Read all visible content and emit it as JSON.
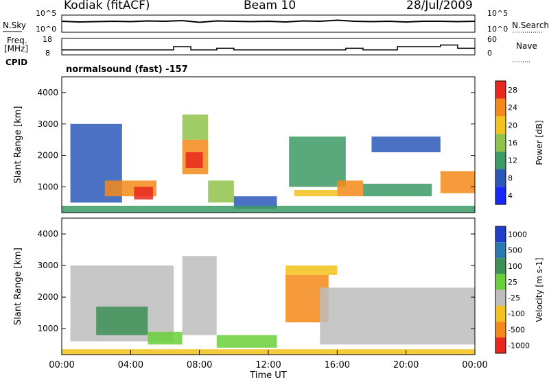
{
  "header": {
    "station": "Kodiak (fitACF)",
    "beam": "Beam 10",
    "date": "28/Jul/2009"
  },
  "side_labels": {
    "nsky": "N.Sky",
    "freq_top": "Freq.",
    "freq_unit": "[MHz]",
    "cpid": "CPID",
    "nsearch": "N.Search",
    "nave": "Nave",
    "mode": "normalsound (fast) -157"
  },
  "chart_data": [
    {
      "type": "line",
      "name": "noise",
      "left_ticks": [
        "10^5",
        "10^0"
      ],
      "right_ticks": [
        "10^5",
        "10^0"
      ],
      "series": [
        {
          "name": "N.Sky",
          "x": [
            0,
            1,
            2,
            3,
            4,
            5,
            6,
            7,
            8,
            9,
            10,
            11,
            12,
            13,
            14,
            15,
            16,
            17,
            18,
            19,
            20,
            21,
            22,
            23,
            24
          ],
          "values": [
            3.2,
            3.0,
            3.1,
            3.2,
            3.1,
            3.3,
            3.2,
            3.4,
            2.9,
            3.3,
            3.2,
            3.1,
            3.2,
            3.0,
            3.3,
            3.2,
            3.5,
            3.2,
            3.1,
            3.2,
            3.0,
            3.2,
            3.2,
            3.1,
            3.2
          ]
        }
      ]
    },
    {
      "type": "line",
      "name": "frequency",
      "left_ticks": [
        "18",
        "8"
      ],
      "right_ticks": [
        "60",
        "0"
      ],
      "series": [
        {
          "name": "Freq",
          "x": [
            0,
            3,
            6.5,
            7.5,
            9,
            10,
            12,
            16.5,
            17.5,
            19.5,
            22,
            23,
            24
          ],
          "values": [
            11,
            11,
            13,
            11,
            12,
            11,
            11,
            12,
            11,
            13,
            14,
            12,
            12
          ]
        }
      ]
    },
    {
      "type": "heatmap",
      "name": "power",
      "ylabel": "Slant Range [km]",
      "yticks": [
        "4000",
        "3000",
        "2000",
        "1000"
      ],
      "colorbar_label": "Power [dB]",
      "colorbar_ticks": [
        "28",
        "24",
        "20",
        "16",
        "12",
        "8",
        "4"
      ],
      "colors": [
        "#1428ff",
        "#2a58b8",
        "#3d9a66",
        "#8fc24a",
        "#f3c21c",
        "#f38a1a",
        "#e8281e"
      ],
      "patches": [
        {
          "t0": 0.5,
          "t1": 3.5,
          "r0": 500,
          "r1": 3000,
          "level": 1
        },
        {
          "t0": 2.5,
          "t1": 5.5,
          "r0": 700,
          "r1": 1200,
          "level": 5
        },
        {
          "t0": 4.2,
          "t1": 5.3,
          "r0": 600,
          "r1": 1000,
          "level": 6
        },
        {
          "t0": 7.0,
          "t1": 8.5,
          "r0": 1400,
          "r1": 2500,
          "level": 5
        },
        {
          "t0": 7.2,
          "t1": 8.2,
          "r0": 1600,
          "r1": 2100,
          "level": 6
        },
        {
          "t0": 7.0,
          "t1": 8.5,
          "r0": 2500,
          "r1": 3300,
          "level": 3
        },
        {
          "t0": 8.5,
          "t1": 10.0,
          "r0": 500,
          "r1": 1200,
          "level": 3
        },
        {
          "t0": 10.0,
          "t1": 12.5,
          "r0": 300,
          "r1": 700,
          "level": 1
        },
        {
          "t0": 13.2,
          "t1": 16.5,
          "r0": 1000,
          "r1": 2600,
          "level": 2
        },
        {
          "t0": 13.5,
          "t1": 16.0,
          "r0": 700,
          "r1": 900,
          "level": 4
        },
        {
          "t0": 16.0,
          "t1": 17.5,
          "r0": 700,
          "r1": 1200,
          "level": 5
        },
        {
          "t0": 17.5,
          "t1": 21.5,
          "r0": 700,
          "r1": 1100,
          "level": 2
        },
        {
          "t0": 18.0,
          "t1": 22.0,
          "r0": 2100,
          "r1": 2600,
          "level": 1
        },
        {
          "t0": 22.0,
          "t1": 24.0,
          "r0": 800,
          "r1": 1500,
          "level": 5
        },
        {
          "t0": 0.0,
          "t1": 24.0,
          "r0": 180,
          "r1": 400,
          "level": 2
        }
      ]
    },
    {
      "type": "heatmap",
      "name": "velocity",
      "ylabel": "Slant Range [km]",
      "yticks": [
        "4000",
        "3000",
        "2000",
        "1000"
      ],
      "colorbar_label": "Velocity [m s-1]",
      "colorbar_ticks": [
        "1000",
        "500",
        "100",
        "25",
        "-25",
        "-100",
        "-500",
        "-1000"
      ],
      "colors": [
        "#1f3fcf",
        "#2a7ab0",
        "#3d8f55",
        "#6ad03a",
        "#bdbdbd",
        "#f3c21c",
        "#f38a1a",
        "#e8281e"
      ],
      "patches": [
        {
          "t0": 0.5,
          "t1": 6.5,
          "r0": 600,
          "r1": 3000,
          "level": 4
        },
        {
          "t0": 2.0,
          "t1": 5.0,
          "r0": 800,
          "r1": 1700,
          "level": 2
        },
        {
          "t0": 5.0,
          "t1": 7.0,
          "r0": 500,
          "r1": 900,
          "level": 3
        },
        {
          "t0": 7.0,
          "t1": 9.0,
          "r0": 800,
          "r1": 3300,
          "level": 4
        },
        {
          "t0": 9.0,
          "t1": 12.5,
          "r0": 400,
          "r1": 800,
          "level": 3
        },
        {
          "t0": 13.0,
          "t1": 15.5,
          "r0": 1200,
          "r1": 2700,
          "level": 6
        },
        {
          "t0": 13.0,
          "t1": 16.0,
          "r0": 2700,
          "r1": 3000,
          "level": 5
        },
        {
          "t0": 15.0,
          "t1": 24.0,
          "r0": 500,
          "r1": 2300,
          "level": 4
        },
        {
          "t0": 0.0,
          "t1": 24.0,
          "r0": 180,
          "r1": 350,
          "level": 5
        }
      ]
    }
  ],
  "xaxis": {
    "ticks": [
      "00:00",
      "04:00",
      "08:00",
      "12:00",
      "16:00",
      "20:00",
      "00:00"
    ],
    "label": "Time UT"
  },
  "colors": {
    "axis": "#000000"
  }
}
